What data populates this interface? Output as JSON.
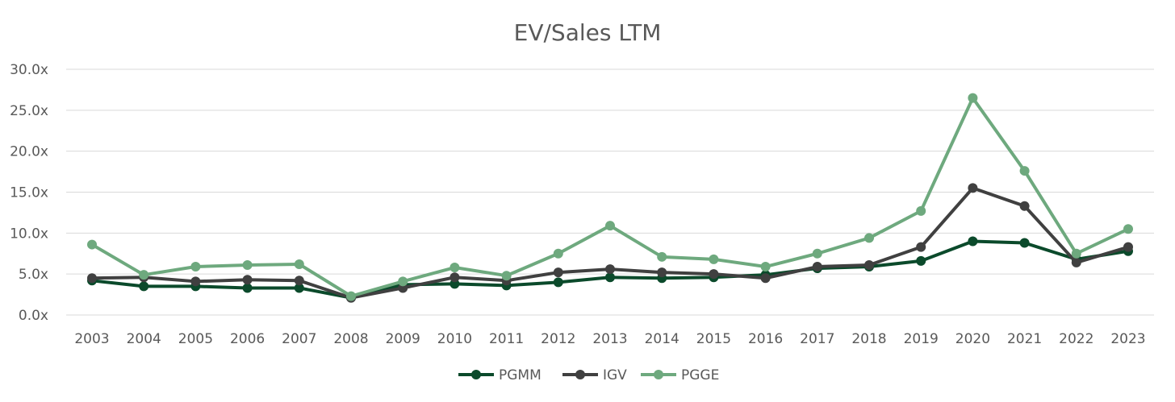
{
  "chart_data": {
    "type": "line",
    "title": "EV/Sales LTM",
    "xlabel": "",
    "ylabel": "",
    "ylim": [
      0,
      30
    ],
    "y_ticks": [
      "0.0x",
      "5.0x",
      "10.0x",
      "15.0x",
      "20.0x",
      "25.0x",
      "30.0x"
    ],
    "grid": true,
    "legend_position": "bottom",
    "x": [
      "2003",
      "2004",
      "2005",
      "2006",
      "2007",
      "2008",
      "2009",
      "2010",
      "2011",
      "2012",
      "2013",
      "2014",
      "2015",
      "2016",
      "2017",
      "2018",
      "2019",
      "2020",
      "2021",
      "2022",
      "2023"
    ],
    "series": [
      {
        "name": "PGMM",
        "color": "#0b4a2b",
        "values": [
          4.2,
          3.5,
          3.5,
          3.3,
          3.3,
          2.1,
          3.7,
          3.8,
          3.6,
          4.0,
          4.6,
          4.5,
          4.6,
          4.9,
          5.7,
          5.9,
          6.6,
          9.0,
          8.8,
          6.8,
          7.8
        ]
      },
      {
        "name": "IGV",
        "color": "#404040",
        "values": [
          4.5,
          4.6,
          4.1,
          4.3,
          4.2,
          2.1,
          3.3,
          4.6,
          4.2,
          5.2,
          5.6,
          5.2,
          5.0,
          4.5,
          5.9,
          6.1,
          8.3,
          15.5,
          13.3,
          6.4,
          8.3
        ]
      },
      {
        "name": "PGGE",
        "color": "#6ea97e",
        "values": [
          8.6,
          4.9,
          5.9,
          6.1,
          6.2,
          2.3,
          4.1,
          5.8,
          4.8,
          7.5,
          10.9,
          7.1,
          6.8,
          5.9,
          7.5,
          9.4,
          12.7,
          26.5,
          17.6,
          7.5,
          10.5
        ]
      }
    ]
  }
}
